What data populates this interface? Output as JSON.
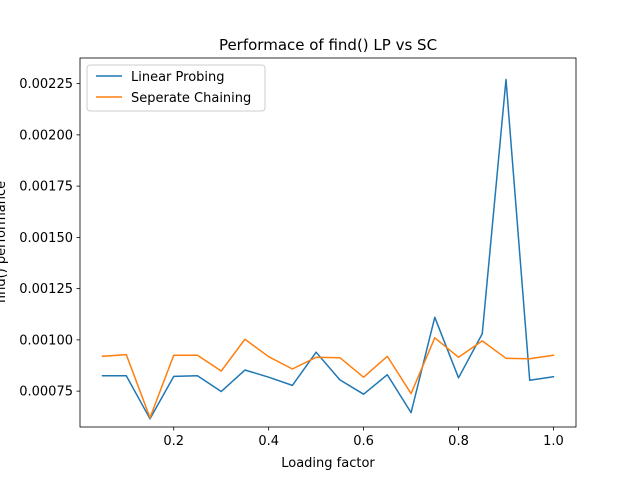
{
  "chart_data": {
    "type": "line",
    "title": "Performace of find() LP vs SC",
    "xlabel": "Loading factor",
    "ylabel": "find() performance",
    "xlim": [
      0.0025,
      1.0475
    ],
    "ylim": [
      0.000575,
      0.002375
    ],
    "x_ticks": [
      0.2,
      0.4,
      0.6,
      0.8,
      1.0
    ],
    "x_tick_labels": [
      "0.2",
      "0.4",
      "0.6",
      "0.8",
      "1.0"
    ],
    "y_ticks": [
      0.00075,
      0.001,
      0.00125,
      0.0015,
      0.00175,
      0.002,
      0.00225
    ],
    "y_tick_labels": [
      "0.00075",
      "0.00100",
      "0.00125",
      "0.00150",
      "0.00175",
      "0.00200",
      "0.00225"
    ],
    "grid": false,
    "legend_position": "top-left",
    "x": [
      0.05,
      0.1,
      0.15,
      0.2,
      0.25,
      0.3,
      0.35,
      0.4,
      0.45,
      0.5,
      0.55,
      0.6,
      0.65,
      0.7,
      0.75,
      0.8,
      0.85,
      0.9,
      0.95,
      1.0
    ],
    "series": [
      {
        "name": "Linear Probing",
        "color": "#1f77b4",
        "values": [
          0.000825,
          0.000825,
          0.000615,
          0.000822,
          0.000825,
          0.000748,
          0.000853,
          0.000818,
          0.000778,
          0.00094,
          0.000805,
          0.000735,
          0.00083,
          0.000645,
          0.00111,
          0.000815,
          0.00103,
          0.00227,
          0.000803,
          0.00082
        ]
      },
      {
        "name": "Seperate Chaining",
        "color": "#ff7f0e",
        "values": [
          0.00092,
          0.000928,
          0.00062,
          0.000925,
          0.000925,
          0.000848,
          0.001003,
          0.000918,
          0.000858,
          0.000915,
          0.000913,
          0.000818,
          0.00092,
          0.000738,
          0.00101,
          0.000915,
          0.000995,
          0.00091,
          0.000908,
          0.000925
        ]
      }
    ]
  }
}
